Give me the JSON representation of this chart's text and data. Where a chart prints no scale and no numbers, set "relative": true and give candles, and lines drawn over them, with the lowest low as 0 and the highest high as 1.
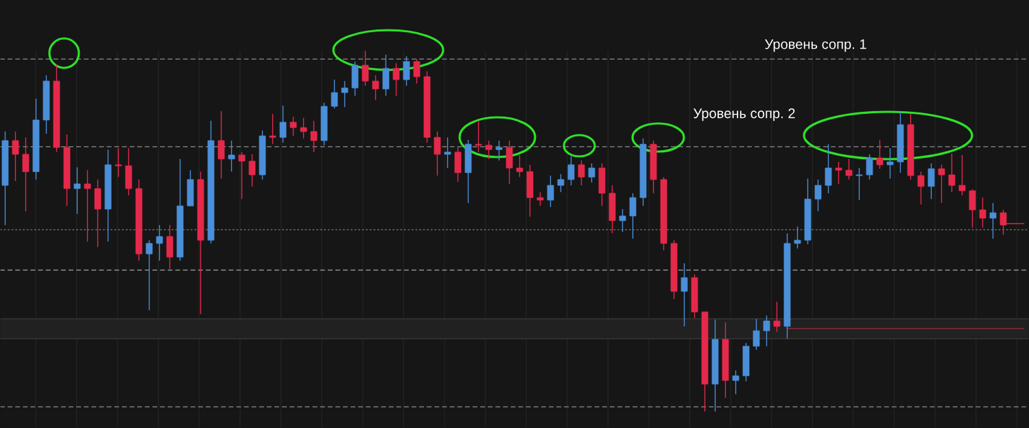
{
  "chart_data": {
    "type": "candlestick",
    "relative": true,
    "grid": "x",
    "categories": [
      null,
      null,
      null,
      null,
      null,
      null,
      null,
      null,
      null,
      null,
      null,
      null,
      null,
      null,
      null,
      null,
      null,
      null,
      null,
      null,
      null,
      null,
      null,
      null,
      null,
      null,
      null,
      null,
      null,
      null,
      null,
      null,
      null,
      null,
      null,
      null,
      null,
      null,
      null,
      null,
      null,
      null,
      null,
      null,
      null,
      null,
      null,
      null,
      null,
      null,
      null,
      null,
      null,
      null,
      null,
      null,
      null,
      null,
      null,
      null,
      null,
      null,
      null,
      null,
      null,
      null,
      null,
      null,
      null,
      null,
      null,
      null,
      null,
      null,
      null,
      null,
      null,
      null,
      null,
      null,
      null,
      null,
      null,
      null,
      null,
      null,
      null,
      null,
      null,
      null,
      null,
      null,
      null,
      null,
      null,
      null,
      null,
      null,
      null,
      null
    ],
    "ohlc": [
      [
        0.627,
        0.776,
        0.517,
        0.751
      ],
      [
        0.751,
        0.776,
        0.639,
        0.713
      ],
      [
        0.713,
        0.76,
        0.555,
        0.665
      ],
      [
        0.665,
        0.867,
        0.643,
        0.808
      ],
      [
        0.808,
        0.932,
        0.77,
        0.916
      ],
      [
        0.916,
        0.962,
        0.719,
        0.732
      ],
      [
        0.732,
        0.768,
        0.57,
        0.618
      ],
      [
        0.618,
        0.677,
        0.548,
        0.631
      ],
      [
        0.631,
        0.669,
        0.471,
        0.618
      ],
      [
        0.618,
        0.643,
        0.456,
        0.561
      ],
      [
        0.561,
        0.726,
        0.471,
        0.684
      ],
      [
        0.684,
        0.73,
        0.65,
        0.681
      ],
      [
        0.681,
        0.73,
        0.599,
        0.618
      ],
      [
        0.618,
        0.643,
        0.418,
        0.437
      ],
      [
        0.437,
        0.475,
        0.281,
        0.466
      ],
      [
        0.466,
        0.517,
        0.418,
        0.485
      ],
      [
        0.485,
        0.517,
        0.395,
        0.428
      ],
      [
        0.428,
        0.7,
        0.418,
        0.57
      ],
      [
        0.57,
        0.669,
        0.57,
        0.643
      ],
      [
        0.643,
        0.665,
        0.27,
        0.475
      ],
      [
        0.475,
        0.806,
        0.466,
        0.751
      ],
      [
        0.751,
        0.833,
        0.646,
        0.7
      ],
      [
        0.7,
        0.751,
        0.665,
        0.711
      ],
      [
        0.711,
        0.719,
        0.589,
        0.694
      ],
      [
        0.694,
        0.713,
        0.624,
        0.656
      ],
      [
        0.656,
        0.779,
        0.643,
        0.764
      ],
      [
        0.764,
        0.825,
        0.741,
        0.76
      ],
      [
        0.76,
        0.848,
        0.745,
        0.802
      ],
      [
        0.802,
        0.817,
        0.764,
        0.787
      ],
      [
        0.787,
        0.814,
        0.757,
        0.776
      ],
      [
        0.776,
        0.806,
        0.719,
        0.751
      ],
      [
        0.751,
        0.856,
        0.738,
        0.846
      ],
      [
        0.846,
        0.92,
        0.84,
        0.884
      ],
      [
        0.884,
        0.916,
        0.844,
        0.897
      ],
      [
        0.897,
        0.97,
        0.875,
        0.96
      ],
      [
        0.96,
        1.0,
        0.903,
        0.916
      ],
      [
        0.916,
        0.932,
        0.863,
        0.894
      ],
      [
        0.894,
        0.989,
        0.875,
        0.951
      ],
      [
        0.951,
        0.966,
        0.875,
        0.92
      ],
      [
        0.92,
        0.985,
        0.903,
        0.97
      ],
      [
        0.97,
        0.977,
        0.909,
        0.928
      ],
      [
        0.928,
        0.943,
        0.745,
        0.76
      ],
      [
        0.76,
        0.776,
        0.654,
        0.713
      ],
      [
        0.713,
        0.76,
        0.675,
        0.719
      ],
      [
        0.719,
        0.732,
        0.637,
        0.662
      ],
      [
        0.662,
        0.753,
        0.578,
        0.741
      ],
      [
        0.741,
        0.806,
        0.719,
        0.738
      ],
      [
        0.738,
        0.751,
        0.7,
        0.726
      ],
      [
        0.726,
        0.751,
        0.696,
        0.732
      ],
      [
        0.732,
        0.751,
        0.631,
        0.675
      ],
      [
        0.675,
        0.711,
        0.65,
        0.665
      ],
      [
        0.665,
        0.684,
        0.54,
        0.593
      ],
      [
        0.593,
        0.608,
        0.57,
        0.586
      ],
      [
        0.586,
        0.654,
        0.567,
        0.627
      ],
      [
        0.627,
        0.658,
        0.608,
        0.643
      ],
      [
        0.643,
        0.707,
        0.627,
        0.684
      ],
      [
        0.684,
        0.696,
        0.627,
        0.65
      ],
      [
        0.65,
        0.688,
        0.635,
        0.675
      ],
      [
        0.675,
        0.688,
        0.57,
        0.605
      ],
      [
        0.605,
        0.627,
        0.494,
        0.529
      ],
      [
        0.529,
        0.561,
        0.498,
        0.542
      ],
      [
        0.542,
        0.605,
        0.479,
        0.593
      ],
      [
        0.593,
        0.757,
        0.57,
        0.741
      ],
      [
        0.741,
        0.751,
        0.605,
        0.643
      ],
      [
        0.643,
        0.65,
        0.447,
        0.466
      ],
      [
        0.466,
        0.475,
        0.312,
        0.333
      ],
      [
        0.333,
        0.411,
        0.236,
        0.371
      ],
      [
        0.371,
        0.38,
        0.259,
        0.276
      ],
      [
        0.276,
        0.276,
        0,
        0.076
      ],
      [
        0.076,
        0.255,
        0,
        0.2
      ],
      [
        0.2,
        0.247,
        0.038,
        0.086
      ],
      [
        0.086,
        0.114,
        0.048,
        0.099
      ],
      [
        0.099,
        0.19,
        0.084,
        0.181
      ],
      [
        0.181,
        0.257,
        0.171,
        0.224
      ],
      [
        0.224,
        0.266,
        0.181,
        0.251
      ],
      [
        0.251,
        0.304,
        0.221,
        0.236
      ],
      [
        0.236,
        0.494,
        0.202,
        0.466
      ],
      [
        0.466,
        0.513,
        0.452,
        0.475
      ],
      [
        0.475,
        0.646,
        0.464,
        0.589
      ],
      [
        0.589,
        0.643,
        0.555,
        0.627
      ],
      [
        0.627,
        0.741,
        0.605,
        0.675
      ],
      [
        0.675,
        0.692,
        0.631,
        0.669
      ],
      [
        0.669,
        0.7,
        0.643,
        0.654
      ],
      [
        0.654,
        0.675,
        0.586,
        0.656
      ],
      [
        0.656,
        0.713,
        0.643,
        0.703
      ],
      [
        0.703,
        0.753,
        0.673,
        0.684
      ],
      [
        0.684,
        0.73,
        0.646,
        0.692
      ],
      [
        0.692,
        0.833,
        0.662,
        0.795
      ],
      [
        0.795,
        0.825,
        0.643,
        0.654
      ],
      [
        0.654,
        0.665,
        0.574,
        0.624
      ],
      [
        0.624,
        0.688,
        0.589,
        0.673
      ],
      [
        0.673,
        0.684,
        0.578,
        0.656
      ],
      [
        0.656,
        0.715,
        0.608,
        0.627
      ],
      [
        0.627,
        0.711,
        0.599,
        0.612
      ],
      [
        0.612,
        0.616,
        0.51,
        0.559
      ],
      [
        0.559,
        0.593,
        0.51,
        0.536
      ],
      [
        0.536,
        0.578,
        0.479,
        0.551
      ],
      [
        0.551,
        0.559,
        0.49,
        0.517
      ],
      null,
      null
    ],
    "colors": [
      "#4a8fd8",
      "#e5294b",
      "#e5294b",
      "#4a8fd8",
      "#4a8fd8",
      "#e5294b",
      "#e5294b",
      "#4a8fd8",
      "#e5294b",
      "#e5294b",
      "#4a8fd8",
      "#e5294b",
      "#e5294b",
      "#e5294b",
      "#4a8fd8",
      "#4a8fd8",
      "#e5294b",
      "#4a8fd8",
      "#4a8fd8",
      "#e5294b",
      "#4a8fd8",
      "#e5294b",
      "#4a8fd8",
      "#e5294b",
      "#e5294b",
      "#4a8fd8",
      "#e5294b",
      "#4a8fd8",
      "#e5294b",
      "#e5294b",
      "#e5294b",
      "#4a8fd8",
      "#4a8fd8",
      "#4a8fd8",
      "#4a8fd8",
      "#e5294b",
      "#e5294b",
      "#4a8fd8",
      "#e5294b",
      "#4a8fd8",
      "#e5294b",
      "#e5294b",
      "#e5294b",
      "#4a8fd8",
      "#e5294b",
      "#4a8fd8",
      "#e5294b",
      "#e5294b",
      "#4a8fd8",
      "#e5294b",
      "#e5294b",
      "#e5294b",
      "#e5294b",
      "#4a8fd8",
      "#4a8fd8",
      "#4a8fd8",
      "#e5294b",
      "#4a8fd8",
      "#e5294b",
      "#e5294b",
      "#4a8fd8",
      "#4a8fd8",
      "#4a8fd8",
      "#e5294b",
      "#e5294b",
      "#e5294b",
      "#4a8fd8",
      "#e5294b",
      "#e5294b",
      "#4a8fd8",
      "#e5294b",
      "#4a8fd8",
      "#4a8fd8",
      "#4a8fd8",
      "#4a8fd8",
      "#e5294b",
      "#4a8fd8",
      "#4a8fd8",
      "#4a8fd8",
      "#4a8fd8",
      "#4a8fd8",
      "#e5294b",
      "#e5294b",
      "#4a8fd8",
      "#4a8fd8",
      "#e5294b",
      "#4a8fd8",
      "#4a8fd8",
      "#e5294b",
      "#e5294b",
      "#4a8fd8",
      "#e5294b",
      "#e5294b",
      "#e5294b",
      "#e5294b",
      "#e5294b",
      "#4a8fd8",
      "#e5294b",
      null,
      null
    ],
    "series": [
      {
        "type": "line",
        "color": "#8b2b36",
        "values": [
          null,
          null,
          null,
          null,
          null,
          null,
          null,
          null,
          null,
          null,
          null,
          null,
          null,
          null,
          null,
          null,
          null,
          null,
          null,
          null,
          null,
          null,
          null,
          null,
          null,
          null,
          null,
          null,
          null,
          null,
          null,
          null,
          null,
          null,
          null,
          null,
          null,
          null,
          null,
          null,
          null,
          null,
          null,
          null,
          null,
          null,
          null,
          null,
          null,
          null,
          null,
          null,
          null,
          null,
          null,
          null,
          null,
          null,
          null,
          null,
          null,
          null,
          null,
          null,
          null,
          null,
          null,
          null,
          null,
          null,
          null,
          null,
          null,
          null,
          null,
          null,
          0.23,
          0.23,
          0.23,
          0.23,
          0.23,
          0.23,
          0.23,
          0.23,
          0.23,
          0.23,
          0.23,
          0.23,
          0.23,
          0.23,
          0.23,
          0.23,
          0.23,
          0.23,
          0.23,
          0.23,
          0.23,
          0.23,
          0.23,
          0.23
        ]
      },
      {
        "type": "line",
        "color": "#d42a40",
        "values": [
          null,
          null,
          null,
          null,
          null,
          null,
          null,
          null,
          null,
          null,
          null,
          null,
          null,
          null,
          null,
          null,
          null,
          null,
          null,
          null,
          null,
          null,
          null,
          null,
          null,
          null,
          null,
          null,
          null,
          null,
          null,
          null,
          null,
          null,
          null,
          null,
          null,
          null,
          null,
          null,
          null,
          null,
          null,
          null,
          null,
          null,
          null,
          null,
          null,
          null,
          null,
          null,
          null,
          null,
          null,
          null,
          null,
          null,
          null,
          null,
          null,
          null,
          null,
          null,
          null,
          null,
          null,
          null,
          null,
          null,
          null,
          null,
          null,
          null,
          null,
          null,
          null,
          null,
          null,
          null,
          null,
          null,
          null,
          null,
          null,
          null,
          null,
          null,
          null,
          null,
          null,
          null,
          null,
          null,
          null,
          null,
          null,
          0.521,
          0.521,
          0.521
        ]
      }
    ],
    "ref_lines": [
      {
        "axis": "y",
        "value": 0.977,
        "label": "Уровень сопр. 1",
        "color": "#8f8f8f",
        "line_style": "dashed"
      },
      {
        "axis": "y",
        "value": 0.734,
        "label": "Уровень сопр. 2",
        "color": "#8f8f8f",
        "line_style": "dashed"
      },
      {
        "axis": "y",
        "value": 0.504,
        "color": "#7a7a7a",
        "line_style": "dotted"
      },
      {
        "axis": "y",
        "value": 0.392,
        "color": "#8f8f8f",
        "line_style": "dashed"
      },
      {
        "axis": "y",
        "value": 0.013,
        "color": "#8f8f8f",
        "line_style": "dashed"
      }
    ],
    "bands": [
      {
        "axis": "y",
        "from": 0.202,
        "to": 0.257,
        "color": "#212121"
      }
    ]
  }
}
